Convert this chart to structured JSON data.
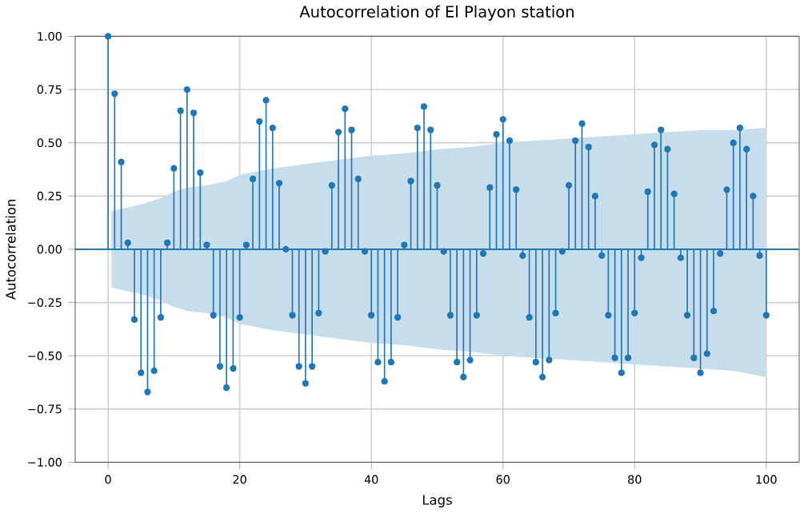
{
  "chart_data": {
    "type": "lollipop",
    "title": "Autocorrelation of El Playon station",
    "xlabel": "Lags",
    "ylabel": "Autocorrelation",
    "xlim": [
      -5,
      105
    ],
    "xticks": [
      0,
      20,
      40,
      60,
      80,
      100
    ],
    "ylim": [
      -1,
      1
    ],
    "yticks": [
      {
        "value": -1,
        "label": "−1.00"
      },
      {
        "value": -0.75,
        "label": "−0.75"
      },
      {
        "value": -0.5,
        "label": "−0.50"
      },
      {
        "value": -0.25,
        "label": "−0.25"
      },
      {
        "value": 0,
        "label": "0.00"
      },
      {
        "value": 0.25,
        "label": "0.25"
      },
      {
        "value": 0.5,
        "label": "0.50"
      },
      {
        "value": 0.75,
        "label": "0.75"
      },
      {
        "value": 1,
        "label": "1.00"
      }
    ],
    "grid": true,
    "series": [
      {
        "marker": "circle",
        "color": "#1f77b4",
        "x": [
          0,
          1,
          2,
          3,
          4,
          5,
          6,
          7,
          8,
          9,
          10,
          11,
          12,
          13,
          14,
          15,
          16,
          17,
          18,
          19,
          20,
          21,
          22,
          23,
          24,
          25,
          26,
          27,
          28,
          29,
          30,
          31,
          32,
          33,
          34,
          35,
          36,
          37,
          38,
          39,
          40,
          41,
          42,
          43,
          44,
          45,
          46,
          47,
          48,
          49,
          50,
          51,
          52,
          53,
          54,
          55,
          56,
          57,
          58,
          59,
          60,
          61,
          62,
          63,
          64,
          65,
          66,
          67,
          68,
          69,
          70,
          71,
          72,
          73,
          74,
          75,
          76,
          77,
          78,
          79,
          80,
          81,
          82,
          83,
          84,
          85,
          86,
          87,
          88,
          89,
          90,
          91,
          92,
          93,
          94,
          95,
          96,
          97,
          98,
          99,
          100
        ],
        "values": [
          1.0,
          0.73,
          0.41,
          0.03,
          -0.33,
          -0.58,
          -0.67,
          -0.57,
          -0.32,
          0.03,
          0.38,
          0.65,
          0.75,
          0.64,
          0.36,
          0.02,
          -0.31,
          -0.55,
          -0.65,
          -0.56,
          -0.32,
          0.02,
          0.33,
          0.6,
          0.7,
          0.57,
          0.31,
          0.0,
          -0.31,
          -0.55,
          -0.63,
          -0.55,
          -0.3,
          -0.01,
          0.3,
          0.55,
          0.66,
          0.56,
          0.33,
          -0.01,
          -0.31,
          -0.53,
          -0.62,
          -0.53,
          -0.32,
          0.02,
          0.32,
          0.57,
          0.67,
          0.56,
          0.3,
          -0.01,
          -0.31,
          -0.53,
          -0.6,
          -0.52,
          -0.31,
          -0.02,
          0.29,
          0.54,
          0.61,
          0.51,
          0.28,
          -0.03,
          -0.32,
          -0.53,
          -0.6,
          -0.52,
          -0.3,
          -0.01,
          0.3,
          0.51,
          0.59,
          0.48,
          0.25,
          -0.03,
          -0.31,
          -0.51,
          -0.58,
          -0.51,
          -0.3,
          -0.04,
          0.27,
          0.49,
          0.56,
          0.47,
          0.26,
          -0.04,
          -0.31,
          -0.51,
          -0.58,
          -0.49,
          -0.29,
          -0.02,
          0.28,
          0.5,
          0.57,
          0.47,
          0.25,
          -0.03,
          -0.31
        ]
      },
      {
        "type": "line",
        "color": "#1f77b4",
        "x": [
          -5,
          0.5,
          5,
          8,
          10,
          12,
          15,
          18,
          20,
          25,
          30,
          35,
          40,
          45,
          50,
          55,
          60,
          65,
          70,
          80,
          90,
          95,
          100,
          105
        ],
        "values": [
          0,
          0,
          0,
          0,
          0,
          0,
          0,
          0,
          0,
          0,
          0,
          0,
          0,
          0,
          0,
          0,
          0,
          0,
          0,
          0,
          0,
          0,
          0,
          0
        ],
        "upper": [
          null,
          0.18,
          0.21,
          0.24,
          0.27,
          0.29,
          0.3,
          0.32,
          0.35,
          0.38,
          0.4,
          0.42,
          0.44,
          0.45,
          0.47,
          0.48,
          0.5,
          0.51,
          0.52,
          0.54,
          0.56,
          0.56,
          0.57,
          null
        ],
        "lower": [
          null,
          -0.18,
          -0.21,
          -0.24,
          -0.27,
          -0.29,
          -0.3,
          -0.32,
          -0.35,
          -0.38,
          -0.4,
          -0.42,
          -0.44,
          -0.45,
          -0.47,
          -0.48,
          -0.5,
          -0.51,
          -0.52,
          -0.54,
          -0.56,
          -0.57,
          -0.6,
          null
        ]
      }
    ]
  }
}
